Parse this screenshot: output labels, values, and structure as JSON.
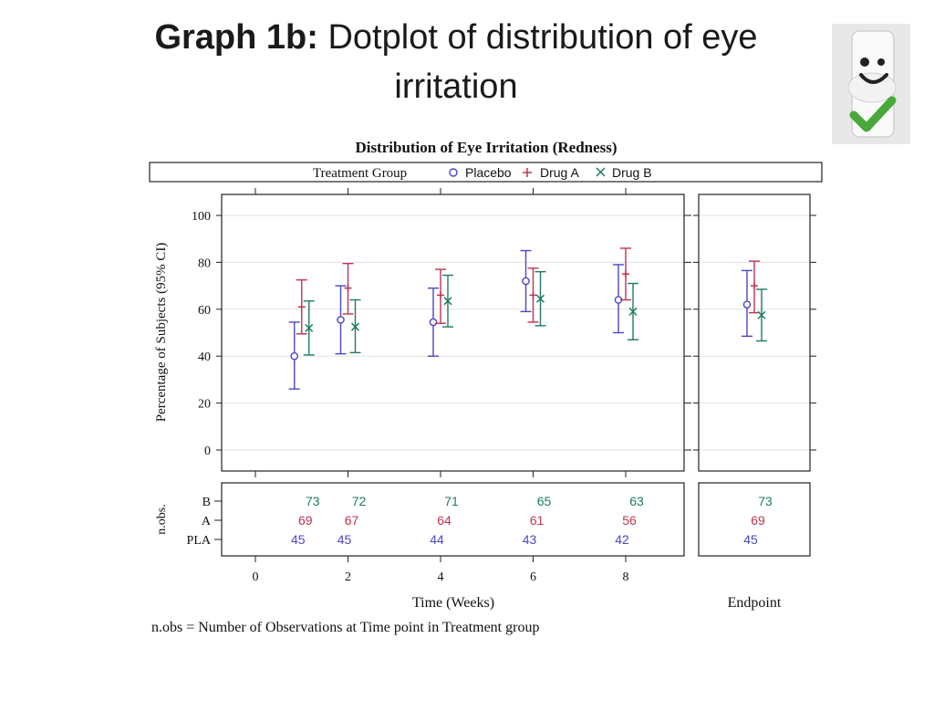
{
  "slide": {
    "title_bold": "Graph 1b:",
    "title_rest": "Dotplot of distribution of eye",
    "title_line2": "irritation"
  },
  "colors": {
    "placebo": "#4b47c4",
    "drug_a": "#c0334f",
    "drug_b": "#1f7a63",
    "frame": "#222222",
    "grid": "#e2e2e2",
    "mascot_check": "#48a83a"
  },
  "mascot_icon": "smiley-checkmark-mascot-icon",
  "chart_data": {
    "type": "scatter",
    "title": "Distribution of Eye Irritation (Redness)",
    "legend": {
      "title": "Treatment Group",
      "placement": "top",
      "entries": [
        {
          "label": "Placebo",
          "marker": "circle",
          "color": "#4b47c4"
        },
        {
          "label": "Drug A",
          "marker": "plus",
          "color": "#c0334f"
        },
        {
          "label": "Drug B",
          "marker": "x",
          "color": "#1f7a63"
        }
      ]
    },
    "ylabel": "Percentage of Subjects (95% CI)",
    "ylim": [
      0,
      100
    ],
    "yticks": [
      0,
      20,
      40,
      60,
      80,
      100
    ],
    "xlabel": "Time (Weeks)",
    "xlim": [
      0,
      9
    ],
    "xticks": [
      0,
      2,
      4,
      6,
      8
    ],
    "endpoint_label": "Endpoint",
    "grid": true,
    "series": [
      {
        "name": "Placebo",
        "x": [
          1,
          2,
          4,
          6,
          8
        ],
        "y": [
          40,
          55.5,
          54.5,
          72,
          64
        ],
        "lower": [
          26,
          41,
          40,
          59,
          50
        ],
        "upper": [
          54.5,
          70,
          69,
          85,
          79
        ],
        "endpoint": {
          "y": 62,
          "lower": 48.5,
          "upper": 76.5
        }
      },
      {
        "name": "Drug A",
        "x": [
          1,
          2,
          4,
          6,
          8
        ],
        "y": [
          61,
          69,
          66,
          66,
          75
        ],
        "lower": [
          49.5,
          58,
          54,
          54.5,
          64
        ],
        "upper": [
          72.5,
          79.5,
          77,
          77.5,
          86
        ],
        "endpoint": {
          "y": 70,
          "lower": 58.5,
          "upper": 80.5
        }
      },
      {
        "name": "Drug B",
        "x": [
          1,
          2,
          4,
          6,
          8
        ],
        "y": [
          52,
          52.5,
          63.5,
          64.5,
          59
        ],
        "lower": [
          40.5,
          41.5,
          52.5,
          53,
          47
        ],
        "upper": [
          63.5,
          64,
          74.5,
          76,
          71
        ],
        "endpoint": {
          "y": 57.5,
          "lower": 46.5,
          "upper": 68.5
        }
      }
    ],
    "nobs": {
      "axis_label": "n.obs.",
      "rows": [
        {
          "label": "B",
          "color": "#1f7a63",
          "x": [
            1,
            2,
            4,
            6,
            8
          ],
          "values": [
            "73",
            "72",
            "71",
            "65",
            "63"
          ],
          "endpoint": "73"
        },
        {
          "label": "A",
          "color": "#c0334f",
          "x": [
            1,
            2,
            4,
            6,
            8
          ],
          "values": [
            "69",
            "67",
            "64",
            "61",
            "56"
          ],
          "endpoint": "69"
        },
        {
          "label": "PLA",
          "color": "#4b47c4",
          "x": [
            1,
            2,
            4,
            6,
            8
          ],
          "values": [
            "45",
            "45",
            "44",
            "43",
            "42"
          ],
          "endpoint": "45"
        }
      ]
    },
    "footnote": "n.obs = Number of Observations at Time point in Treatment group"
  }
}
